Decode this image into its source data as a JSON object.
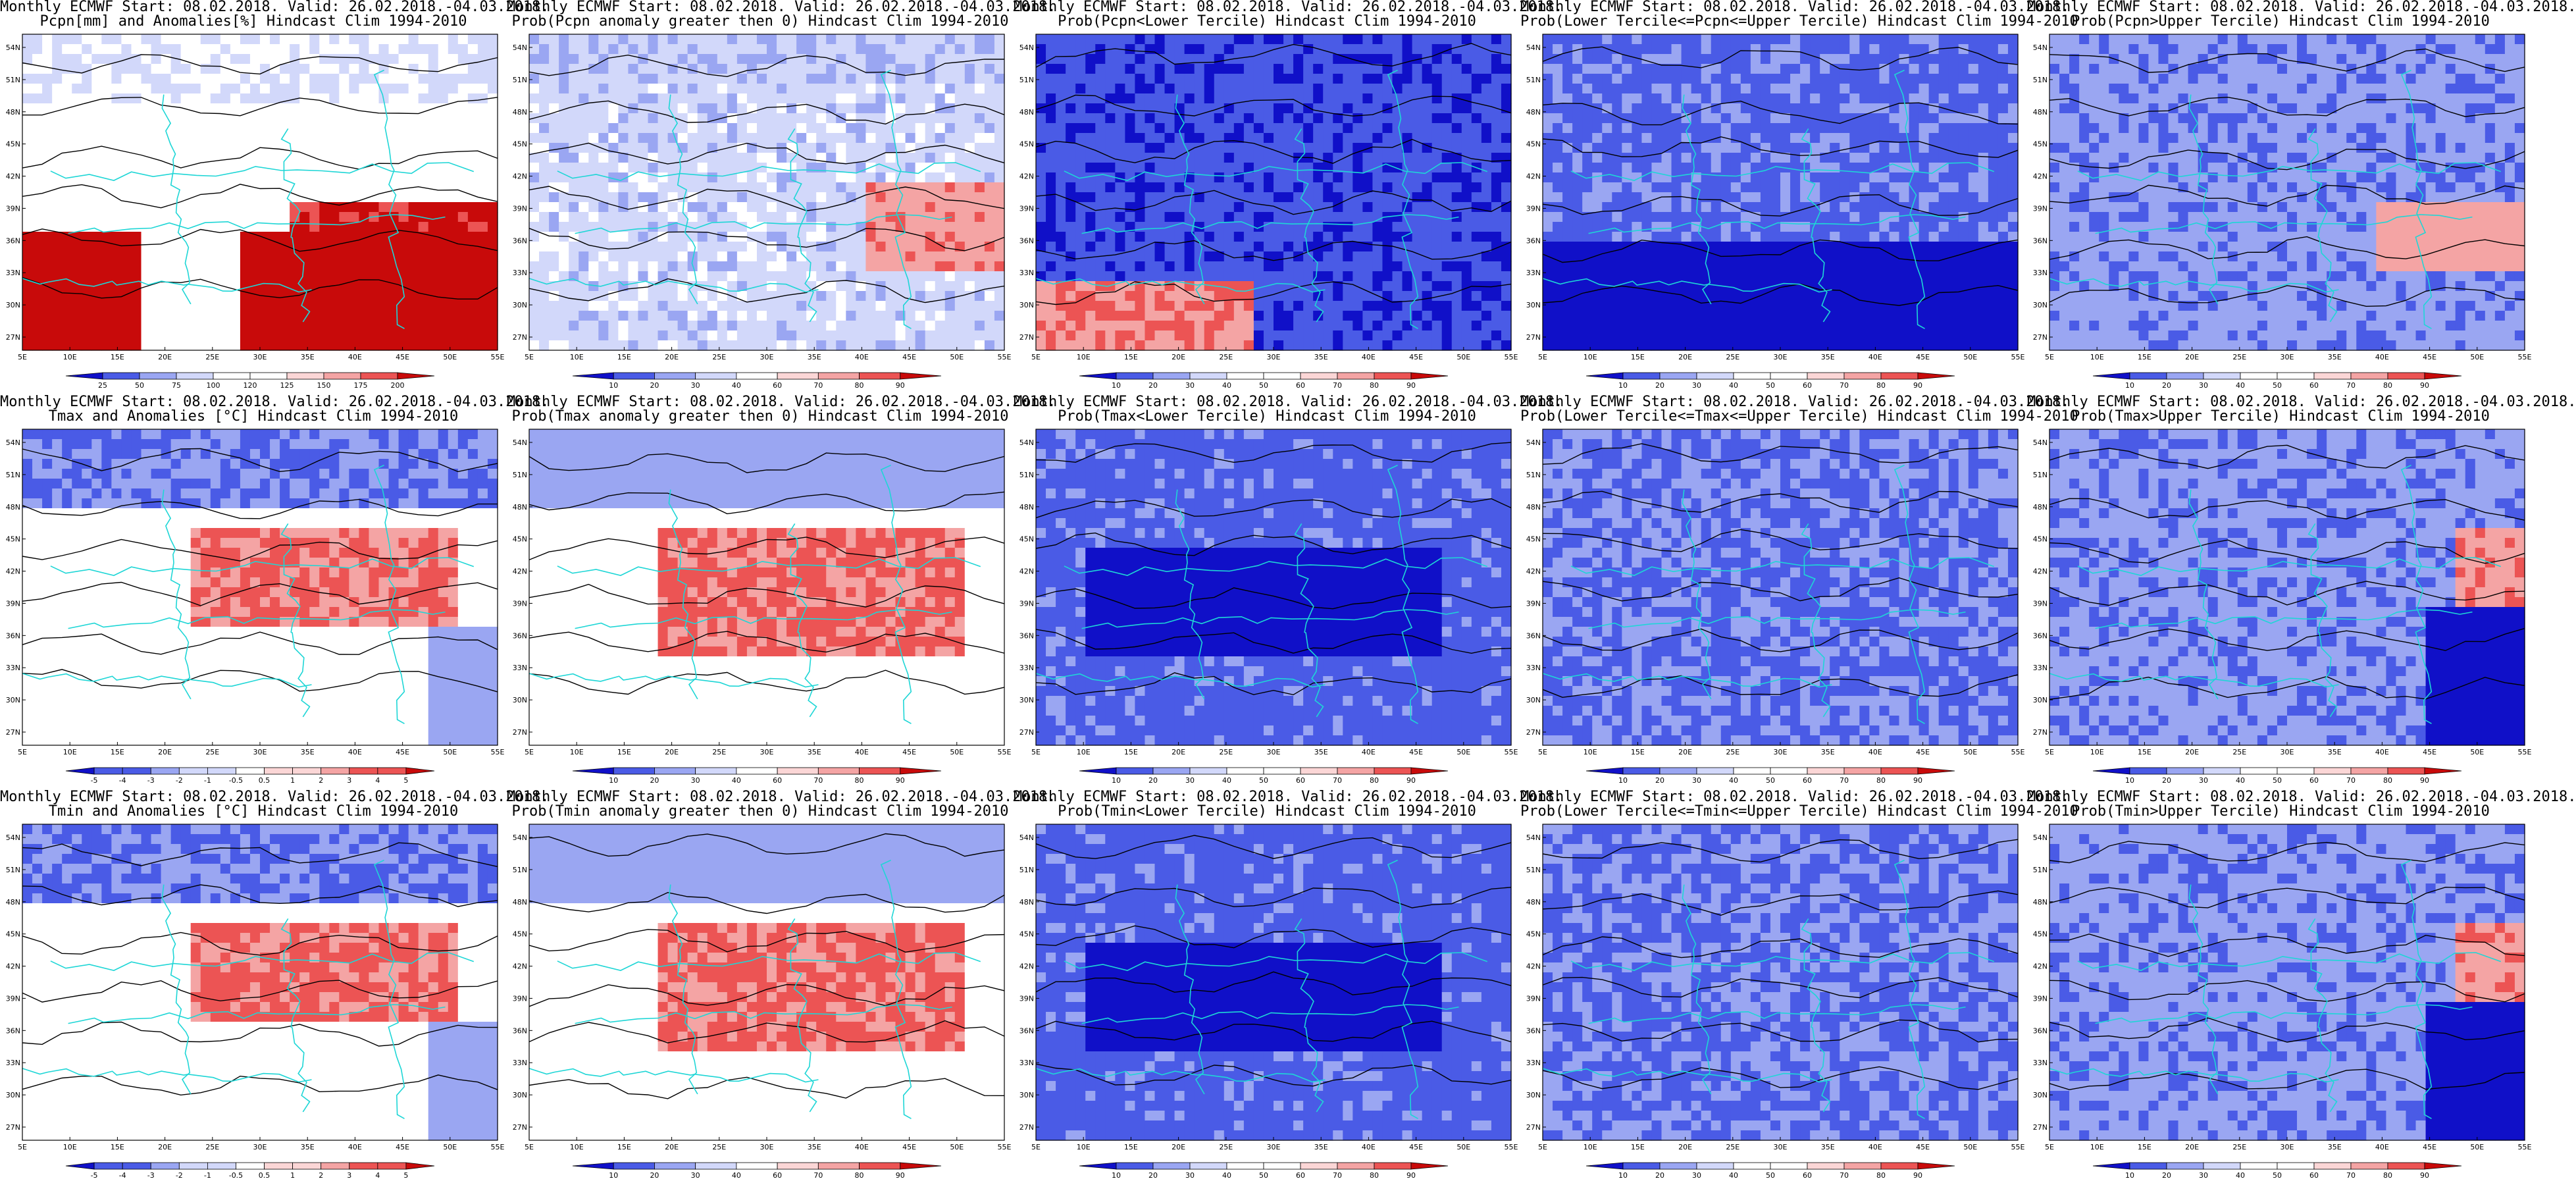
{
  "figure": {
    "columns": 5,
    "rows": 3,
    "title_prefix": "Monthly ECMWF Start: 08.02.2018. Valid: 26.02.2018.-04.03.2018.",
    "lat_ticks": [
      "27N",
      "30N",
      "33N",
      "36N",
      "39N",
      "42N",
      "45N",
      "48N",
      "51N",
      "54N"
    ],
    "lon_ticks": [
      "5E",
      "10E",
      "15E",
      "20E",
      "25E",
      "30E",
      "35E",
      "40E",
      "45E",
      "50E",
      "55E"
    ],
    "colors": {
      "blue_dark": "#1010c8",
      "blue_mid": "#4a5be6",
      "blue_light": "#9aa6f2",
      "blue_pale": "#d2d8fa",
      "red_pale": "#fbd6d6",
      "red_light": "#f4a4a4",
      "red_mid": "#ec5454",
      "red_dark": "#c80a0a",
      "coast": "#1ed6d6",
      "contour": "#000000"
    }
  },
  "panels": [
    {
      "line1": "Monthly ECMWF Start: 08.02.2018. Valid: 26.02.2018.-04.03.2018.",
      "line2": "Pcpn[mm] and Anomalies[%] Hindcast Clim 1994-2010",
      "colorbar": [
        "25",
        "50",
        "75",
        "100",
        "120",
        "125",
        "150",
        "175",
        "200"
      ],
      "scheme": "anom",
      "pattern": "pcpn_anom"
    },
    {
      "line1": "Monthly ECMWF Start: 08.02.2018. Valid: 26.02.2018.-04.03.2018.",
      "line2": "Prob(Pcpn anomaly greater then 0) Hindcast Clim 1994-2010",
      "colorbar": [
        "10",
        "20",
        "30",
        "40",
        "60",
        "70",
        "80",
        "90"
      ],
      "scheme": "prob",
      "pattern": "pcpn_pos"
    },
    {
      "line1": "Monthly ECMWF Start: 08.02.2018. Valid: 26.02.2018.-04.03.2018.",
      "line2": "Prob(Pcpn<Lower Tercile) Hindcast Clim 1994-2010",
      "colorbar": [
        "10",
        "20",
        "30",
        "40",
        "50",
        "60",
        "70",
        "80",
        "90"
      ],
      "scheme": "prob",
      "pattern": "pcpn_lower"
    },
    {
      "line1": "Monthly ECMWF Start: 08.02.2018. Valid: 26.02.2018.-04.03.2018.",
      "line2": "Prob(Lower Tercile<=Pcpn<=Upper Tercile) Hindcast Clim 1994-2010",
      "colorbar": [
        "10",
        "20",
        "30",
        "40",
        "50",
        "60",
        "70",
        "80",
        "90"
      ],
      "scheme": "prob",
      "pattern": "pcpn_mid"
    },
    {
      "line1": "Monthly ECMWF Start: 08.02.2018. Valid: 26.02.2018.-04.03.2018.",
      "line2": "Prob(Pcpn>Upper Tercile) Hindcast Clim 1994-2010",
      "colorbar": [
        "10",
        "20",
        "30",
        "40",
        "50",
        "60",
        "70",
        "80",
        "90"
      ],
      "scheme": "prob",
      "pattern": "pcpn_upper"
    },
    {
      "line1": "Monthly ECMWF Start: 08.02.2018. Valid: 26.02.2018.-04.03.2018.",
      "line2": "Tmax and Anomalies [°C] Hindcast Clim 1994-2010",
      "colorbar": [
        "-5",
        "-4",
        "-3",
        "-2",
        "-1",
        "-0.5",
        "0.5",
        "1",
        "2",
        "3",
        "4",
        "5"
      ],
      "scheme": "anom",
      "pattern": "t_warm_east"
    },
    {
      "line1": "Monthly ECMWF Start: 08.02.2018. Valid: 26.02.2018.-04.03.2018.",
      "line2": "Prob(Tmax anomaly greater then 0) Hindcast Clim 1994-2010",
      "colorbar": [
        "10",
        "20",
        "30",
        "40",
        "60",
        "70",
        "80",
        "90"
      ],
      "scheme": "prob",
      "pattern": "t_prob_warm"
    },
    {
      "line1": "Monthly ECMWF Start: 08.02.2018. Valid: 26.02.2018.-04.03.2018.",
      "line2": "Prob(Tmax<Lower Tercile) Hindcast Clim 1994-2010",
      "colorbar": [
        "10",
        "20",
        "30",
        "40",
        "50",
        "60",
        "70",
        "80",
        "90"
      ],
      "scheme": "prob",
      "pattern": "t_lower"
    },
    {
      "line1": "Monthly ECMWF Start: 08.02.2018. Valid: 26.02.2018.-04.03.2018.",
      "line2": "Prob(Lower Tercile<=Tmax<=Upper Tercile) Hindcast Clim 1994-2010",
      "colorbar": [
        "10",
        "20",
        "30",
        "40",
        "50",
        "60",
        "70",
        "80",
        "90"
      ],
      "scheme": "prob",
      "pattern": "t_mid"
    },
    {
      "line1": "Monthly ECMWF Start: 08.02.2018. Valid: 26.02.2018.-04.03.2018.",
      "line2": "Prob(Tmax>Upper Tercile) Hindcast Clim 1994-2010",
      "colorbar": [
        "10",
        "20",
        "30",
        "40",
        "50",
        "60",
        "70",
        "80",
        "90"
      ],
      "scheme": "prob",
      "pattern": "t_upper"
    },
    {
      "line1": "Monthly ECMWF Start: 08.02.2018. Valid: 26.02.2018.-04.03.2018.",
      "line2": "Tmin and Anomalies [°C] Hindcast Clim 1994-2010",
      "colorbar": [
        "-5",
        "-4",
        "-3",
        "-2",
        "-1",
        "-0.5",
        "0.5",
        "1",
        "2",
        "3",
        "4",
        "5"
      ],
      "scheme": "anom",
      "pattern": "t_warm_east"
    },
    {
      "line1": "Monthly ECMWF Start: 08.02.2018. Valid: 26.02.2018.-04.03.2018.",
      "line2": "Prob(Tmin anomaly greater then 0) Hindcast Clim 1994-2010",
      "colorbar": [
        "10",
        "20",
        "30",
        "40",
        "60",
        "70",
        "80",
        "90"
      ],
      "scheme": "prob",
      "pattern": "t_prob_warm"
    },
    {
      "line1": "Monthly ECMWF Start: 08.02.2018. Valid: 26.02.2018.-04.03.2018.",
      "line2": "Prob(Tmin<Lower Tercile) Hindcast Clim 1994-2010",
      "colorbar": [
        "10",
        "20",
        "30",
        "40",
        "50",
        "60",
        "70",
        "80",
        "90"
      ],
      "scheme": "prob",
      "pattern": "t_lower"
    },
    {
      "line1": "Monthly ECMWF Start: 08.02.2018. Valid: 26.02.2018.-04.03.2018.",
      "line2": "Prob(Lower Tercile<=Tmin<=Upper Tercile) Hindcast Clim 1994-2010",
      "colorbar": [
        "10",
        "20",
        "30",
        "40",
        "50",
        "60",
        "70",
        "80",
        "90"
      ],
      "scheme": "prob",
      "pattern": "t_mid"
    },
    {
      "line1": "Monthly ECMWF Start: 08.02.2018. Valid: 26.02.2018.-04.03.2018.",
      "line2": "Prob(Tmin>Upper Tercile) Hindcast Clim 1994-2010",
      "colorbar": [
        "10",
        "20",
        "30",
        "40",
        "50",
        "60",
        "70",
        "80",
        "90"
      ],
      "scheme": "prob",
      "pattern": "t_upper"
    }
  ]
}
